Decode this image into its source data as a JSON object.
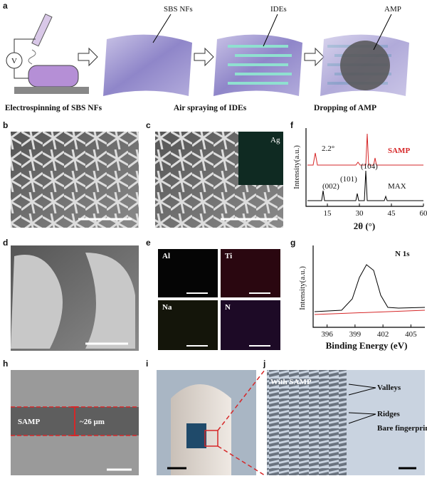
{
  "panels": {
    "a": {
      "label": "a",
      "voltage": "V",
      "steps": [
        "SBS NFs",
        "IDEs",
        "AMP"
      ],
      "captions": [
        "Electrospinning of SBS NFs",
        "Air spraying of IDEs",
        "Dropping of AMP"
      ]
    },
    "b": {
      "label": "b"
    },
    "c": {
      "label": "c",
      "inset": "Ag"
    },
    "d": {
      "label": "d"
    },
    "e": {
      "label": "e",
      "maps": [
        "Al",
        "Ti",
        "Na",
        "N"
      ]
    },
    "f": {
      "label": "f",
      "series": [
        "SAMP",
        "MAX"
      ],
      "peaks": [
        "(002)",
        "(101)",
        "(104)"
      ],
      "shift": "2.2°",
      "ylabel": "Intensity(a.u.)",
      "xlabel": "2θ (°)",
      "xlim": [
        5,
        60
      ],
      "xticks": [
        15,
        30,
        45,
        60
      ]
    },
    "g": {
      "label": "g",
      "annotation": "N 1s",
      "ylabel": "Intensity(a.u.)",
      "xlabel": "Binding Energy (eV)",
      "xlim": [
        394.5,
        406.5
      ],
      "xticks": [
        396,
        399,
        402,
        405
      ]
    },
    "h": {
      "label": "h",
      "layer": "SAMP",
      "thickness": "~26 μm"
    },
    "i": {
      "label": "i"
    },
    "j": {
      "label": "j",
      "labels": [
        "With SAMP",
        "Valleys",
        "Ridges",
        "Bare fingerprint"
      ]
    }
  }
}
